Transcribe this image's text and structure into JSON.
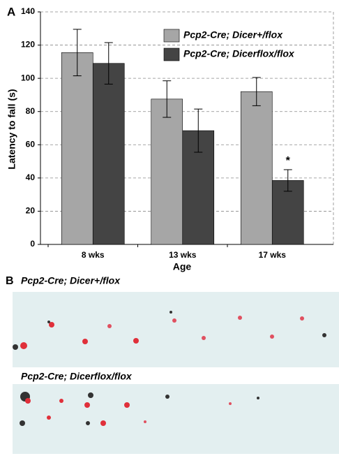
{
  "chart_data": {
    "type": "bar",
    "panel_label": "A",
    "categories": [
      "8 wks",
      "13 wks",
      "17 wks"
    ],
    "xlabel": "Age",
    "ylabel": "Latency to fall (s)",
    "series": [
      {
        "name": "Pcp2-Cre; Dicer+/flox",
        "color": "#a6a6a6",
        "values": [
          115.5,
          87.5,
          92
        ],
        "errors": [
          14,
          11,
          8.5
        ]
      },
      {
        "name": "Pcp2-Cre; Dicerflox/flox",
        "color": "#444444",
        "values": [
          109,
          68.5,
          38.5
        ],
        "errors": [
          12.5,
          13,
          6.5
        ]
      }
    ],
    "annotations": [
      "*"
    ],
    "ylim": [
      0,
      140
    ],
    "yticks": [
      0,
      20,
      40,
      60,
      80,
      100,
      120,
      140
    ],
    "grid": true,
    "legend": "top-right"
  },
  "panel_b": {
    "label": "B",
    "captions": [
      "Pcp2-Cre; Dicer+/flox",
      "Pcp2-Cre; Dicerflox/flox"
    ]
  }
}
